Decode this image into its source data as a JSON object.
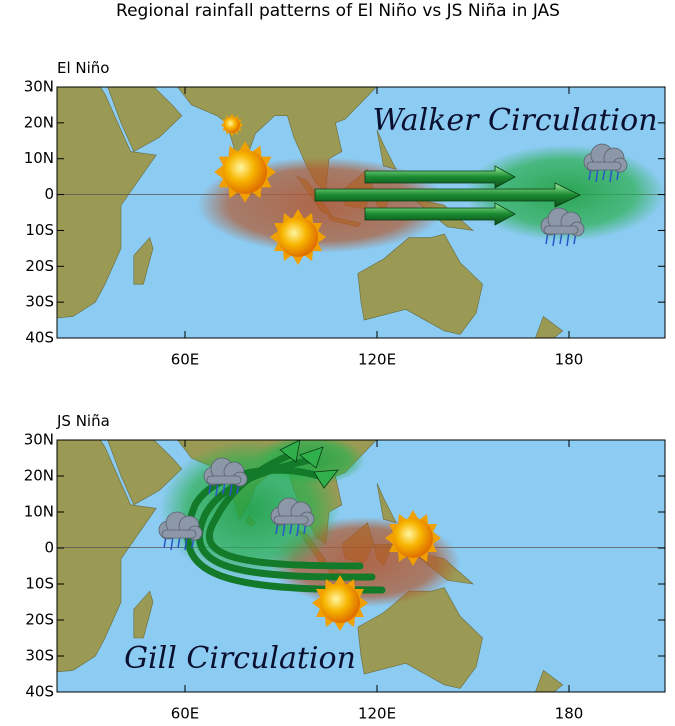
{
  "title": "Regional rainfall patterns of El Niño vs JS Niña in JAS",
  "panels": [
    {
      "label": "El Niño",
      "annotation": "Walker Circulation"
    },
    {
      "label": "JS Niña",
      "annotation": "Gill Circulation"
    }
  ],
  "axes": {
    "xlim": [
      20,
      210
    ],
    "ylim": [
      -40,
      30
    ],
    "xticks": [
      {
        "value": 60,
        "label": "60E"
      },
      {
        "value": 120,
        "label": "120E"
      },
      180
    ],
    "yticks": [
      {
        "value": 30,
        "label": "30N"
      },
      {
        "value": 20,
        "label": "20N"
      },
      {
        "value": 10,
        "label": "10N"
      },
      0,
      {
        "value": -10,
        "label": "10S"
      },
      {
        "value": -20,
        "label": "20S"
      },
      {
        "value": -30,
        "label": "30S"
      },
      {
        "value": -40,
        "label": "40S"
      }
    ]
  }
}
